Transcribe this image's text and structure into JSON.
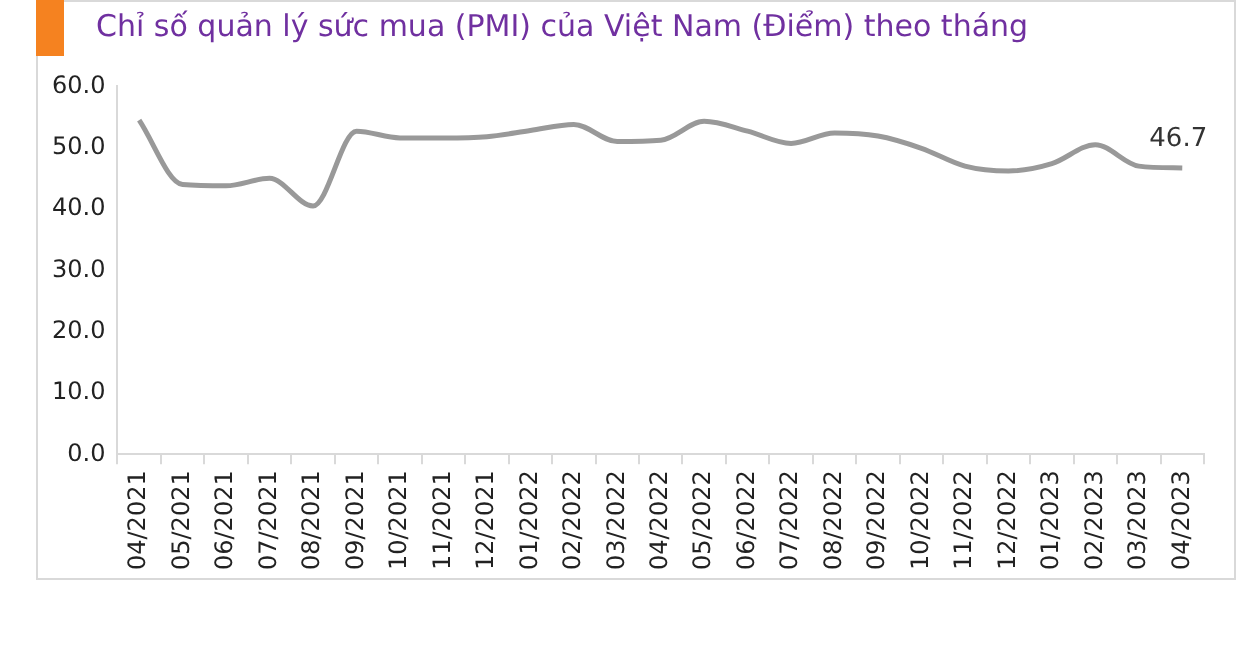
{
  "chart_data": {
    "type": "line",
    "title": "Chỉ số quản lý sức mua (PMI) của Việt Nam (Điểm) theo tháng",
    "categories": [
      "04/2021",
      "05/2021",
      "06/2021",
      "07/2021",
      "08/2021",
      "09/2021",
      "10/2021",
      "11/2021",
      "12/2021",
      "01/2022",
      "02/2022",
      "03/2022",
      "04/2022",
      "05/2022",
      "06/2022",
      "07/2022",
      "08/2022",
      "09/2022",
      "10/2022",
      "11/2022",
      "12/2022",
      "01/2023",
      "02/2023",
      "03/2023",
      "04/2023"
    ],
    "series": [
      {
        "color": "#999999",
        "values": [
          54.5,
          44.0,
          43.8,
          45.0,
          40.5,
          52.7,
          51.6,
          51.6,
          51.8,
          52.8,
          53.8,
          51.0,
          51.2,
          54.3,
          52.7,
          50.7,
          52.4,
          51.9,
          49.9,
          47.0,
          46.2,
          47.4,
          50.5,
          47.0,
          46.7
        ],
        "value_labels": [
          null,
          null,
          null,
          null,
          null,
          null,
          null,
          null,
          null,
          null,
          null,
          null,
          null,
          null,
          null,
          null,
          null,
          null,
          null,
          null,
          null,
          null,
          null,
          null,
          "46.7"
        ]
      }
    ],
    "ylim": [
      0,
      60
    ],
    "yticks": [
      {
        "value": 0,
        "label": "0.0"
      },
      {
        "value": 10,
        "label": "10.0"
      },
      {
        "value": 20,
        "label": "20.0"
      },
      {
        "value": 30,
        "label": "30.0"
      },
      {
        "value": 40,
        "label": "40.0"
      },
      {
        "value": 50,
        "label": "50.0"
      },
      {
        "value": 60,
        "label": "60.0"
      }
    ],
    "grid": false,
    "legend": false,
    "marker": "none",
    "line_style": "solid"
  }
}
